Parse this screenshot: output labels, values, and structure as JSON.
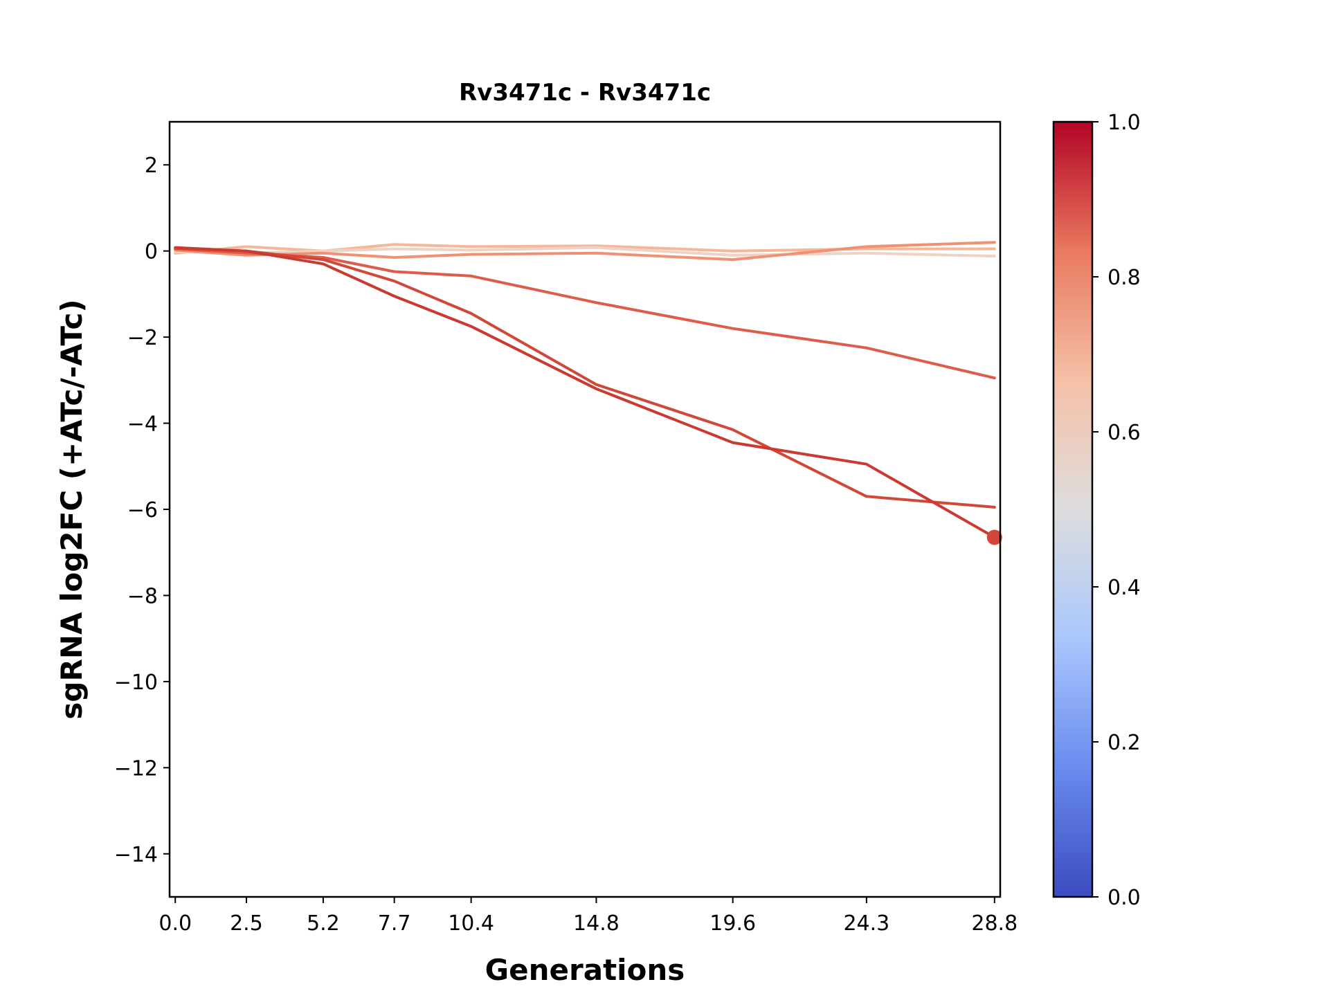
{
  "chart_data": {
    "type": "line",
    "title": "Rv3471c - Rv3471c",
    "xlabel": "Generations",
    "ylabel": "sgRNA log2FC (+ATc/-ATc)",
    "x": [
      0.0,
      2.5,
      5.2,
      7.7,
      10.4,
      14.8,
      19.6,
      24.3,
      28.8
    ],
    "xticks": [
      "0.0",
      "2.5",
      "5.2",
      "7.7",
      "10.4",
      "14.8",
      "19.6",
      "24.3",
      "28.8"
    ],
    "xlim": [
      -0.2,
      29.0
    ],
    "ylim": [
      -15,
      3
    ],
    "yticks": [
      2,
      0,
      -2,
      -4,
      -6,
      -8,
      -10,
      -12,
      -14
    ],
    "ytick_labels": [
      "2",
      "0",
      "−2",
      "−4",
      "−6",
      "−8",
      "−10",
      "−12",
      "−14"
    ],
    "grid": false,
    "series": [
      {
        "color": "#f4b79a",
        "values": [
          -0.05,
          0.1,
          0.0,
          0.15,
          0.1,
          0.12,
          0.0,
          0.05,
          0.05
        ]
      },
      {
        "color": "#eed3c5",
        "values": [
          -0.02,
          -0.05,
          0.0,
          0.05,
          0.02,
          0.08,
          -0.1,
          -0.05,
          -0.12
        ]
      },
      {
        "color": "#ef9172",
        "values": [
          0.02,
          -0.1,
          -0.05,
          -0.15,
          -0.08,
          -0.05,
          -0.2,
          0.1,
          0.2
        ]
      },
      {
        "color": "#dd5d4a",
        "values": [
          0.05,
          -0.05,
          -0.15,
          -0.48,
          -0.58,
          -1.2,
          -1.8,
          -2.25,
          -2.95
        ]
      },
      {
        "color": "#d24838",
        "values": [
          0.06,
          0.0,
          -0.2,
          -0.7,
          -1.45,
          -3.1,
          -4.15,
          -5.7,
          -5.95
        ]
      },
      {
        "color": "#cb3a30",
        "values": [
          0.08,
          0.0,
          -0.3,
          -1.05,
          -1.75,
          -3.2,
          -4.45,
          -4.95,
          -6.65
        ]
      }
    ],
    "highlight_point": {
      "x": 28.8,
      "y": -6.65,
      "color": "#d24838"
    },
    "colorbar": {
      "range": [
        0.0,
        1.0
      ],
      "ticks": [
        "1.0",
        "0.8",
        "0.6",
        "0.4",
        "0.2",
        "0.0"
      ],
      "tick_values": [
        1.0,
        0.8,
        0.6,
        0.4,
        0.2,
        0.0
      ],
      "colormap": "coolwarm",
      "stops": [
        "#3b4cc0",
        "#6a8bef",
        "#aac7fd",
        "#dddddd",
        "#f5c1a8",
        "#e8795e",
        "#b40426"
      ]
    }
  }
}
